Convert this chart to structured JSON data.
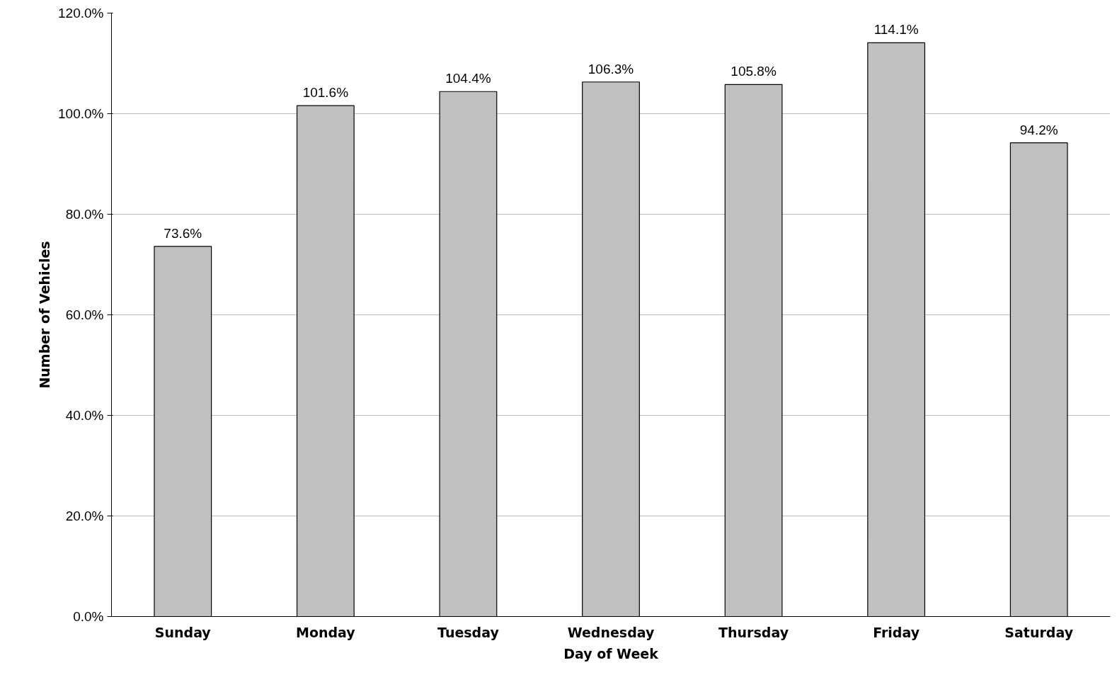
{
  "chart_data": {
    "type": "bar",
    "xlabel": "Day of Week",
    "ylabel": "Number of Vehicles",
    "categories": [
      "Sunday",
      "Monday",
      "Tuesday",
      "Wednesday",
      "Thursday",
      "Friday",
      "Saturday"
    ],
    "values": [
      73.6,
      101.6,
      104.4,
      106.3,
      105.8,
      114.1,
      94.2
    ],
    "value_labels": [
      "73.6%",
      "101.6%",
      "104.4%",
      "106.3%",
      "105.8%",
      "114.1%",
      "94.2%"
    ],
    "color": "#c0c0c0",
    "ylim": [
      0,
      120
    ],
    "yticks": [
      {
        "value": 0,
        "label": "0.0%"
      },
      {
        "value": 20,
        "label": "20.0%"
      },
      {
        "value": 40,
        "label": "40.0%"
      },
      {
        "value": 60,
        "label": "60.0%"
      },
      {
        "value": 80,
        "label": "80.0%"
      },
      {
        "value": 100,
        "label": "100.0%"
      },
      {
        "value": 120,
        "label": "120.0%"
      }
    ],
    "grid": "y"
  }
}
